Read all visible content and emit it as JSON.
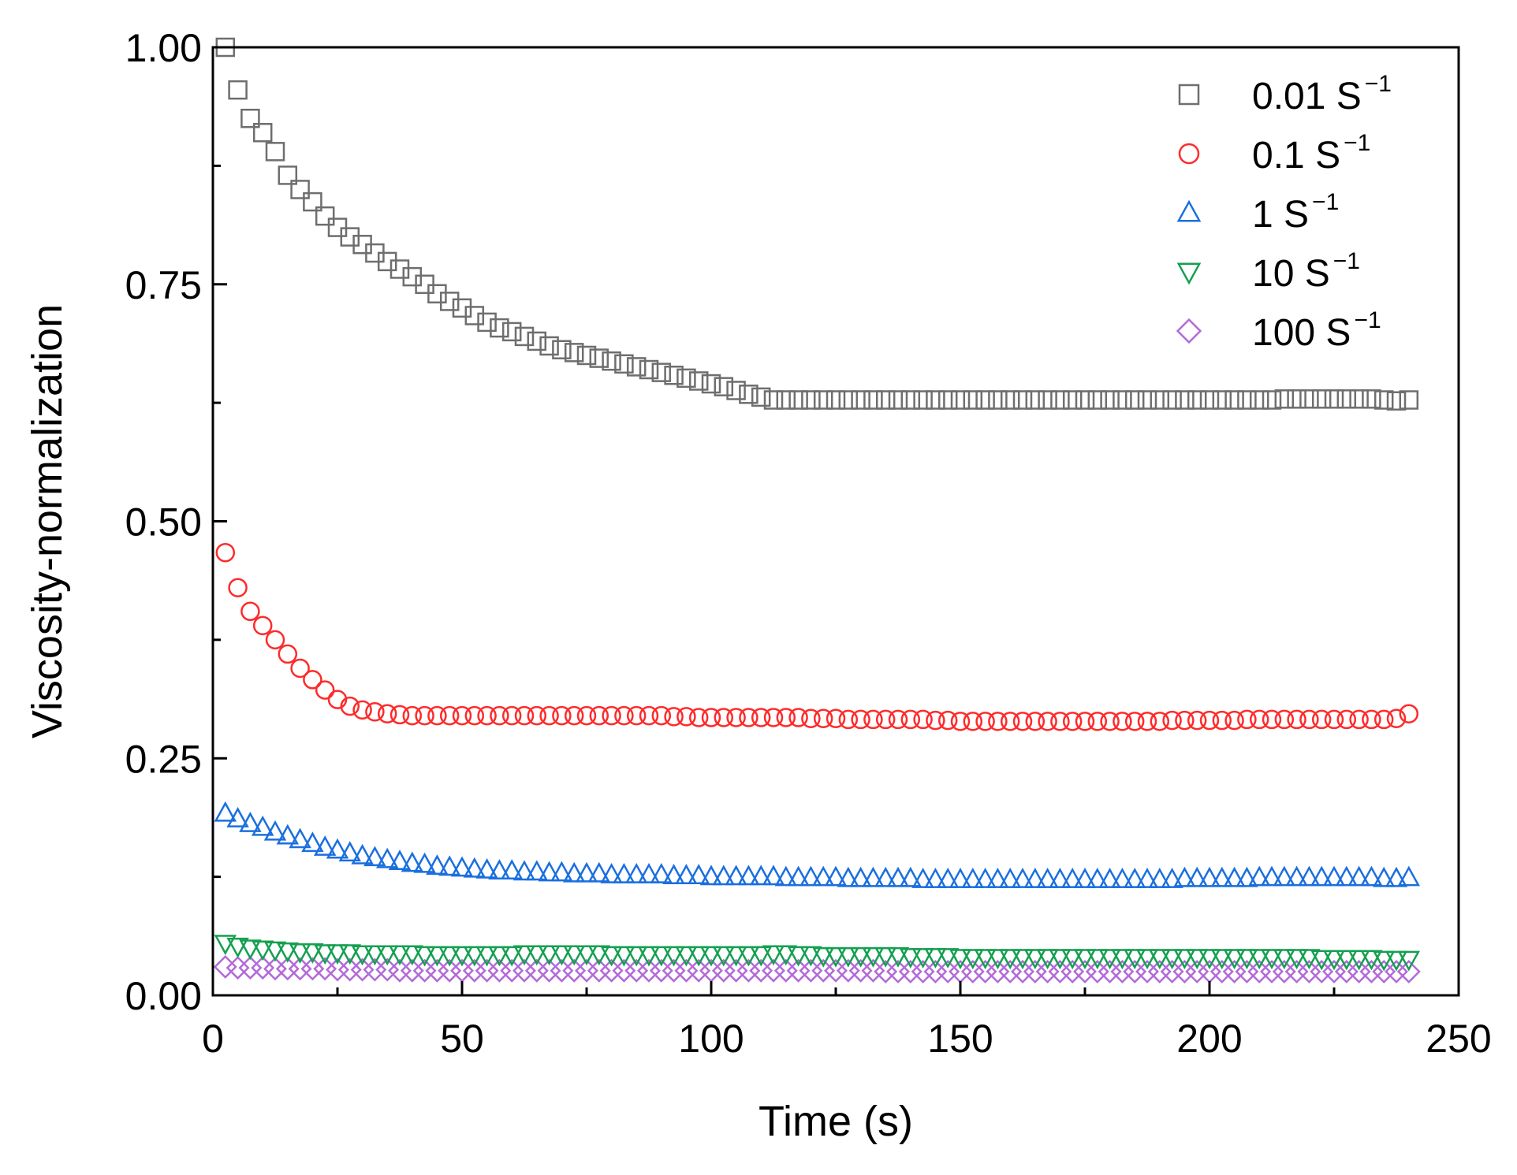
{
  "chart_data": {
    "type": "scatter",
    "title": "",
    "xlabel": "Time (s)",
    "ylabel": "Viscosity-normalization",
    "xlim": [
      0,
      250
    ],
    "ylim": [
      0,
      1.0
    ],
    "xticks": [
      0,
      50,
      100,
      150,
      200,
      250
    ],
    "xtick_labels": [
      "0",
      "50",
      "100",
      "150",
      "200",
      "250"
    ],
    "yticks": [
      0,
      0.25,
      0.5,
      0.75,
      1.0
    ],
    "ytick_labels": [
      "0.00",
      "0.25",
      "0.50",
      "0.75",
      "1.00"
    ],
    "legend_position": "top-right",
    "x": [
      2.5,
      5.0,
      7.5,
      10.0,
      12.5,
      15.0,
      17.5,
      20.0,
      22.5,
      25.0,
      27.5,
      30.0,
      32.5,
      35.0,
      37.5,
      40.0,
      42.5,
      45.0,
      47.5,
      50.0,
      52.5,
      55.0,
      57.5,
      60.0,
      62.5,
      65.0,
      67.5,
      70.0,
      72.5,
      75.0,
      77.5,
      80.0,
      82.5,
      85.0,
      87.5,
      90.0,
      92.5,
      95.0,
      97.5,
      100.0,
      102.5,
      105.0,
      107.5,
      110.0,
      112.5,
      115.0,
      117.5,
      120.0,
      122.5,
      125.0,
      127.5,
      130.0,
      132.5,
      135.0,
      137.5,
      140.0,
      142.5,
      145.0,
      147.5,
      150.0,
      152.5,
      155.0,
      157.5,
      160.0,
      162.5,
      165.0,
      167.5,
      170.0,
      172.5,
      175.0,
      177.5,
      180.0,
      182.5,
      185.0,
      187.5,
      190.0,
      192.5,
      195.0,
      197.5,
      200.0,
      202.5,
      205.0,
      207.5,
      210.0,
      212.5,
      215.0,
      217.5,
      220.0,
      222.5,
      225.0,
      227.5,
      230.0,
      232.5,
      235.0,
      237.5,
      240.0
    ],
    "series": [
      {
        "name": "0.01 S",
        "exponent": "−1",
        "marker": "square",
        "color": "#6e6e6e",
        "values": [
          1.0,
          0.955,
          0.925,
          0.91,
          0.89,
          0.865,
          0.85,
          0.837,
          0.822,
          0.81,
          0.8,
          0.792,
          0.783,
          0.774,
          0.766,
          0.758,
          0.75,
          0.74,
          0.732,
          0.725,
          0.717,
          0.71,
          0.704,
          0.7,
          0.695,
          0.69,
          0.685,
          0.681,
          0.678,
          0.675,
          0.672,
          0.669,
          0.666,
          0.663,
          0.66,
          0.657,
          0.654,
          0.651,
          0.648,
          0.645,
          0.642,
          0.638,
          0.634,
          0.631,
          0.628,
          0.628,
          0.628,
          0.628,
          0.628,
          0.628,
          0.628,
          0.628,
          0.628,
          0.628,
          0.628,
          0.628,
          0.628,
          0.628,
          0.628,
          0.628,
          0.628,
          0.628,
          0.628,
          0.628,
          0.628,
          0.628,
          0.628,
          0.628,
          0.628,
          0.628,
          0.628,
          0.628,
          0.628,
          0.628,
          0.628,
          0.628,
          0.628,
          0.628,
          0.628,
          0.628,
          0.628,
          0.628,
          0.628,
          0.628,
          0.628,
          0.629,
          0.629,
          0.629,
          0.629,
          0.629,
          0.629,
          0.629,
          0.629,
          0.628,
          0.627,
          0.628
        ]
      },
      {
        "name": "0.1 S",
        "exponent": "−1",
        "marker": "circle",
        "color": "#ff2a2a",
        "values": [
          0.467,
          0.43,
          0.405,
          0.39,
          0.375,
          0.36,
          0.345,
          0.333,
          0.322,
          0.312,
          0.305,
          0.301,
          0.299,
          0.297,
          0.296,
          0.295,
          0.295,
          0.295,
          0.295,
          0.295,
          0.295,
          0.295,
          0.295,
          0.295,
          0.295,
          0.295,
          0.295,
          0.295,
          0.295,
          0.295,
          0.295,
          0.295,
          0.295,
          0.295,
          0.295,
          0.295,
          0.294,
          0.294,
          0.293,
          0.293,
          0.293,
          0.293,
          0.293,
          0.293,
          0.293,
          0.293,
          0.293,
          0.292,
          0.292,
          0.292,
          0.291,
          0.291,
          0.291,
          0.291,
          0.291,
          0.291,
          0.291,
          0.29,
          0.29,
          0.289,
          0.289,
          0.289,
          0.289,
          0.289,
          0.289,
          0.289,
          0.289,
          0.289,
          0.289,
          0.289,
          0.289,
          0.289,
          0.289,
          0.289,
          0.289,
          0.289,
          0.29,
          0.29,
          0.29,
          0.29,
          0.29,
          0.29,
          0.291,
          0.291,
          0.291,
          0.291,
          0.291,
          0.291,
          0.291,
          0.291,
          0.291,
          0.291,
          0.291,
          0.291,
          0.292,
          0.297
        ]
      },
      {
        "name": "1 S",
        "exponent": "−1",
        "marker": "triangle-up",
        "color": "#1a6fdf",
        "values": [
          0.192,
          0.186,
          0.181,
          0.177,
          0.172,
          0.168,
          0.164,
          0.16,
          0.156,
          0.153,
          0.15,
          0.147,
          0.145,
          0.143,
          0.141,
          0.139,
          0.138,
          0.136,
          0.135,
          0.134,
          0.133,
          0.132,
          0.131,
          0.131,
          0.13,
          0.13,
          0.129,
          0.129,
          0.128,
          0.128,
          0.128,
          0.127,
          0.127,
          0.127,
          0.127,
          0.127,
          0.126,
          0.126,
          0.126,
          0.125,
          0.125,
          0.125,
          0.125,
          0.125,
          0.125,
          0.124,
          0.124,
          0.124,
          0.124,
          0.124,
          0.123,
          0.123,
          0.123,
          0.123,
          0.123,
          0.123,
          0.122,
          0.122,
          0.122,
          0.122,
          0.122,
          0.122,
          0.122,
          0.122,
          0.122,
          0.122,
          0.122,
          0.122,
          0.122,
          0.122,
          0.122,
          0.122,
          0.122,
          0.122,
          0.122,
          0.122,
          0.122,
          0.123,
          0.123,
          0.123,
          0.123,
          0.123,
          0.123,
          0.124,
          0.124,
          0.124,
          0.124,
          0.124,
          0.124,
          0.124,
          0.124,
          0.124,
          0.124,
          0.123,
          0.123,
          0.124
        ]
      },
      {
        "name": "10 S",
        "exponent": "−1",
        "marker": "triangle-down",
        "color": "#14a050",
        "values": [
          0.055,
          0.052,
          0.05,
          0.049,
          0.048,
          0.047,
          0.046,
          0.046,
          0.045,
          0.045,
          0.045,
          0.044,
          0.044,
          0.044,
          0.044,
          0.044,
          0.043,
          0.043,
          0.043,
          0.043,
          0.043,
          0.043,
          0.043,
          0.043,
          0.044,
          0.044,
          0.044,
          0.044,
          0.044,
          0.044,
          0.044,
          0.043,
          0.043,
          0.043,
          0.043,
          0.043,
          0.043,
          0.043,
          0.043,
          0.043,
          0.043,
          0.043,
          0.043,
          0.043,
          0.044,
          0.044,
          0.043,
          0.043,
          0.042,
          0.042,
          0.042,
          0.042,
          0.042,
          0.042,
          0.042,
          0.041,
          0.041,
          0.041,
          0.041,
          0.04,
          0.04,
          0.04,
          0.04,
          0.04,
          0.04,
          0.04,
          0.04,
          0.04,
          0.04,
          0.04,
          0.04,
          0.04,
          0.04,
          0.04,
          0.04,
          0.04,
          0.04,
          0.04,
          0.04,
          0.04,
          0.04,
          0.04,
          0.04,
          0.04,
          0.04,
          0.04,
          0.04,
          0.04,
          0.039,
          0.039,
          0.039,
          0.039,
          0.039,
          0.038,
          0.038,
          0.038
        ]
      },
      {
        "name": "100 S",
        "exponent": "−1",
        "marker": "diamond",
        "color": "#b36ad9",
        "values": [
          0.03,
          0.029,
          0.029,
          0.029,
          0.028,
          0.028,
          0.028,
          0.028,
          0.028,
          0.027,
          0.027,
          0.027,
          0.027,
          0.027,
          0.026,
          0.026,
          0.026,
          0.026,
          0.026,
          0.026,
          0.026,
          0.026,
          0.026,
          0.026,
          0.026,
          0.026,
          0.026,
          0.026,
          0.026,
          0.026,
          0.026,
          0.026,
          0.026,
          0.026,
          0.026,
          0.026,
          0.026,
          0.026,
          0.026,
          0.026,
          0.026,
          0.026,
          0.026,
          0.026,
          0.026,
          0.026,
          0.026,
          0.026,
          0.026,
          0.026,
          0.026,
          0.026,
          0.026,
          0.025,
          0.025,
          0.025,
          0.025,
          0.025,
          0.025,
          0.025,
          0.025,
          0.025,
          0.025,
          0.025,
          0.025,
          0.025,
          0.025,
          0.025,
          0.025,
          0.025,
          0.025,
          0.025,
          0.025,
          0.025,
          0.025,
          0.025,
          0.025,
          0.025,
          0.025,
          0.025,
          0.025,
          0.025,
          0.025,
          0.025,
          0.025,
          0.025,
          0.025,
          0.025,
          0.025,
          0.025,
          0.025,
          0.025,
          0.025,
          0.025,
          0.025,
          0.025
        ]
      }
    ]
  }
}
